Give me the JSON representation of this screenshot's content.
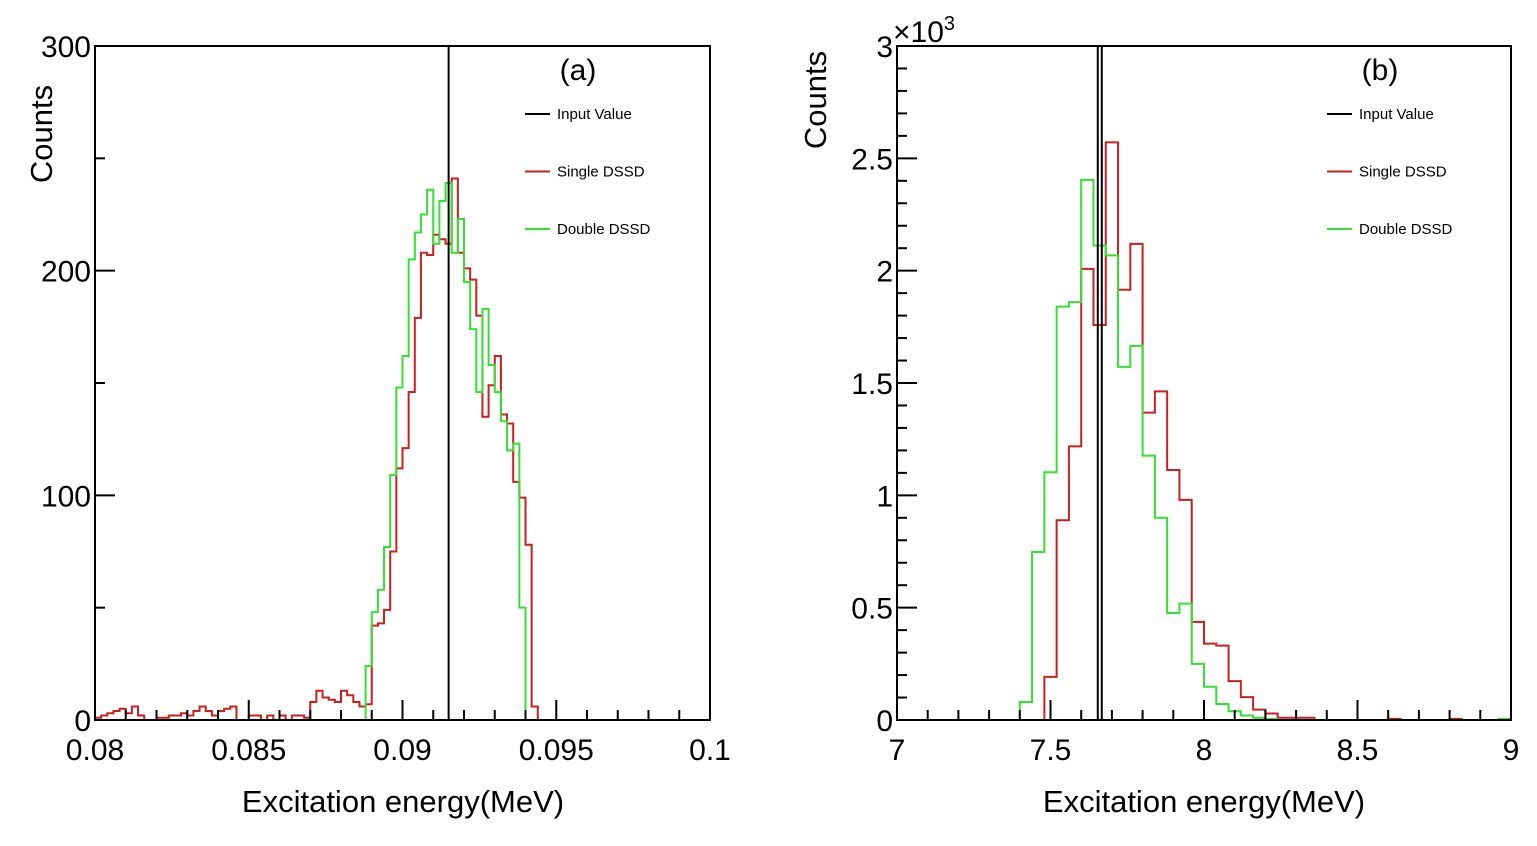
{
  "chart_data": [
    {
      "type": "histogram",
      "panel_label": "(a)",
      "xlabel": "Excitation energy(MeV)",
      "ylabel": "Counts",
      "xlim": [
        0.08,
        0.1
      ],
      "ylim": [
        0,
        300
      ],
      "x_ticks": [
        "0.08",
        "0.085",
        "0.09",
        "0.095",
        "0.1"
      ],
      "y_ticks": [
        "0",
        "100",
        "200",
        "300"
      ],
      "y_multiplier": "",
      "bin_start": 0.08,
      "bin_width": 0.0002,
      "input_value": 0.0915,
      "legend_position": "top-right",
      "legend": [
        "Input Value",
        "Single DSSD",
        "Double DSSD"
      ],
      "series": [
        {
          "name": "Single DSSD",
          "color": "#cc1f1f",
          "values": [
            1,
            2,
            3,
            4,
            5,
            3,
            6,
            2,
            0,
            0,
            1,
            1,
            2,
            2,
            3,
            2,
            4,
            6,
            4,
            2,
            4,
            5,
            6,
            0,
            0,
            2,
            2,
            0,
            2,
            0,
            2,
            0,
            2,
            2,
            1,
            8,
            13,
            10,
            9,
            8,
            13,
            11,
            8,
            6,
            7,
            42,
            43,
            49,
            75,
            112,
            121,
            146,
            179,
            208,
            207,
            216,
            214,
            212,
            241,
            208,
            201,
            196,
            180,
            135,
            149,
            162,
            136,
            132,
            106,
            99,
            78,
            6
          ]
        },
        {
          "name": "Double DSSD",
          "color": "#33e033",
          "values": [
            0,
            0,
            0,
            0,
            0,
            0,
            0,
            0,
            0,
            0,
            0,
            0,
            0,
            0,
            0,
            0,
            0,
            0,
            0,
            0,
            0,
            0,
            0,
            0,
            0,
            0,
            0,
            0,
            0,
            0,
            0,
            0,
            0,
            0,
            0,
            0,
            0,
            0,
            0,
            0,
            0,
            0,
            0,
            0,
            24,
            48,
            58,
            77,
            109,
            148,
            162,
            205,
            217,
            225,
            236,
            212,
            231,
            239,
            208,
            223,
            195,
            174,
            146,
            183,
            158,
            146,
            133,
            120,
            123,
            50
          ]
        }
      ]
    },
    {
      "type": "histogram",
      "panel_label": "(b)",
      "xlabel": "Excitation energy(MeV)",
      "ylabel": "Counts",
      "xlim": [
        7,
        9
      ],
      "ylim": [
        0,
        3000
      ],
      "x_ticks": [
        "7",
        "7.5",
        "8",
        "8.5",
        "9"
      ],
      "y_ticks": [
        "0",
        "0.5",
        "1",
        "1.5",
        "2",
        "2.5",
        "3"
      ],
      "y_multiplier": "×10",
      "y_multiplier_exp": "3",
      "bin_start": 7.0,
      "bin_width": 0.04,
      "input_value": 7.654,
      "legend_position": "top-right",
      "legend": [
        "Input Value",
        "Single DSSD",
        "Double DSSD"
      ],
      "series": [
        {
          "name": "Single DSSD",
          "color": "#cc1f1f",
          "values": [
            0,
            0,
            0,
            0,
            0,
            0,
            0,
            0,
            0,
            0,
            0,
            0,
            192,
            889,
            1218,
            2008,
            1758,
            2571,
            1915,
            2119,
            1368,
            1463,
            1113,
            980,
            437,
            340,
            331,
            173,
            102,
            46,
            29,
            10,
            10,
            10,
            0,
            0,
            0,
            0,
            0,
            0,
            5,
            0,
            0,
            0,
            0,
            5,
            0,
            0,
            0,
            0
          ]
        },
        {
          "name": "Double DSSD",
          "color": "#33e033",
          "values": [
            0,
            0,
            0,
            0,
            0,
            0,
            0,
            0,
            0,
            0,
            80,
            748,
            1103,
            1840,
            1860,
            2404,
            2112,
            2068,
            1572,
            1665,
            1177,
            900,
            476,
            518,
            250,
            148,
            71,
            39,
            20,
            10,
            5,
            0,
            0,
            0,
            0,
            0,
            0,
            0,
            0,
            0,
            0,
            0,
            0,
            0,
            0,
            0,
            0,
            0,
            0,
            5
          ]
        }
      ]
    }
  ]
}
